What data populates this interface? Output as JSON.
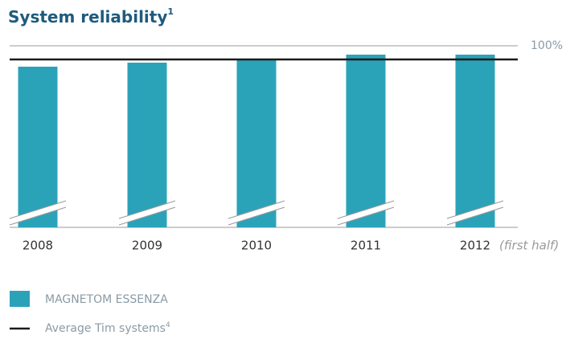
{
  "chart_data": {
    "type": "bar",
    "title": "System reliability",
    "title_note": "1",
    "categories": [
      "2008",
      "2009",
      "2010",
      "2011",
      "2012"
    ],
    "annotation": "(first half)",
    "series": [
      {
        "name": "MAGNETOM ESSENZA",
        "color": "#2aa3b9",
        "values": [
          98.7,
          98.95,
          99.2,
          99.45,
          99.45
        ]
      }
    ],
    "reference_line": {
      "name": "Average Tim systems",
      "note": "4",
      "value": 99.15,
      "color": "#1a1a1a"
    },
    "ylim": [
      88.7,
      100
    ],
    "yticks": [
      {
        "value": 100,
        "label": "100%"
      }
    ],
    "grid": true
  }
}
